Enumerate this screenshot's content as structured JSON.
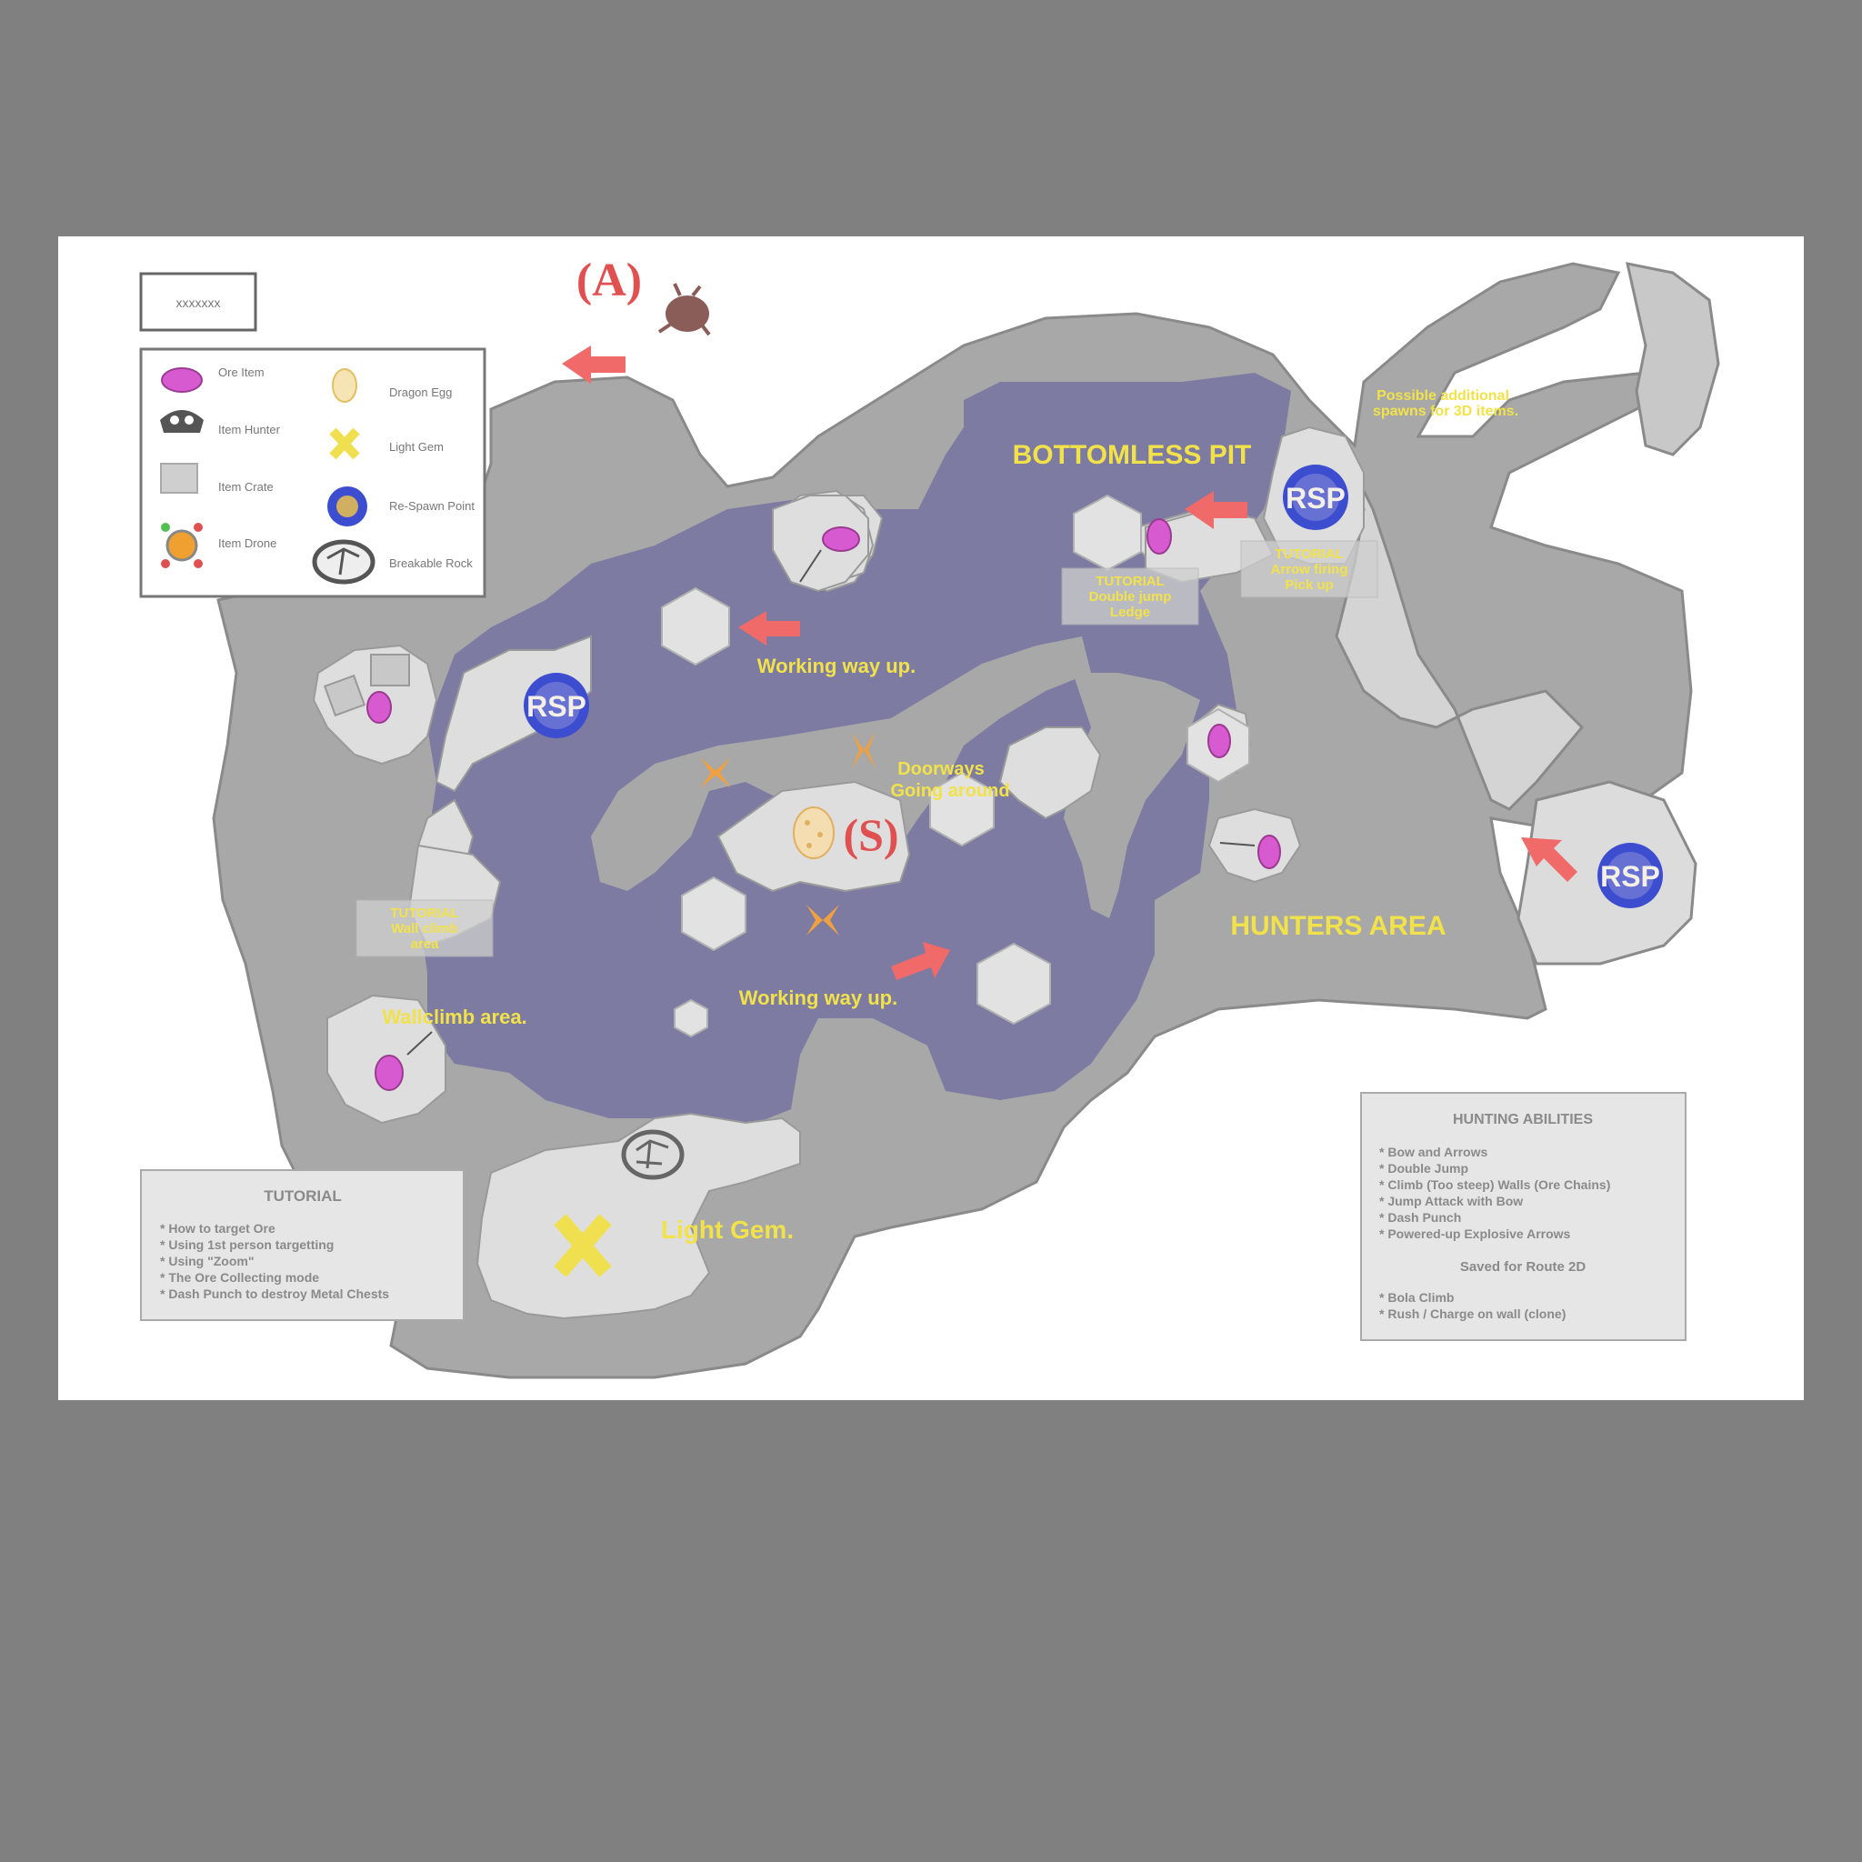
{
  "map": {
    "title_box": "xxxxxxx",
    "markers": {
      "a": "(A)",
      "s": "(S)"
    },
    "labels": {
      "bottomless_pit": "BOTTOMLESS PIT",
      "hunters_area": "HUNTERS  AREA",
      "working_way_up_1": "Working way up.",
      "working_way_up_2": "Working way up.",
      "doorways_1": "Doorways",
      "doorways_2": "Going around",
      "light_gem": "Light Gem.",
      "wallclimb_area": "Wallclimb area.",
      "possible_spawn_1": "Possible additional",
      "possible_spawn_2": "spawns for 3D items.",
      "tutorial_1_line1": "TUTORIAL",
      "tutorial_1_line2": "Double jump",
      "tutorial_1_line3": "Ledge",
      "tutorial_2_line1": "TUTORIAL",
      "tutorial_2_line2": "Arrow firing",
      "tutorial_2_line3": "Pick up",
      "tutorial_3_line1": "TUTORIAL",
      "tutorial_3_line2": "Wall climb",
      "tutorial_3_line3": "area"
    },
    "rsp_labels": [
      "RSP",
      "RSP",
      "RSP"
    ]
  },
  "legend": {
    "items": [
      {
        "icon": "ore-crystal-icon",
        "label": "Ore Item"
      },
      {
        "icon": "egg-icon",
        "label": "Dragon Egg"
      },
      {
        "icon": "mask-icon",
        "label": "Item Hunter"
      },
      {
        "icon": "x-marker-icon",
        "label": "Light Gem"
      },
      {
        "icon": "box-icon",
        "label": "Item Crate"
      },
      {
        "icon": "rsp-portal-icon",
        "label": "Re-Spawn Point"
      },
      {
        "icon": "gear-creature-icon",
        "label": "Item Drone"
      },
      {
        "icon": "cracked-rock-icon",
        "label": "Breakable Rock"
      }
    ]
  },
  "tutorial_panel": {
    "title": "TUTORIAL",
    "lines": [
      "* How to target Ore",
      "* Using 1st person targetting",
      "* Using \"Zoom\"",
      "* The Ore Collecting mode",
      "* Dash Punch to destroy Metal Chests"
    ]
  },
  "hunting_panel": {
    "title": "HUNTING ABILITIES",
    "lines": [
      "* Bow and Arrows",
      "* Double Jump",
      "* Climb (Too steep) Walls (Ore Chains)",
      "* Jump Attack with Bow",
      "* Dash Punch",
      "* Powered-up Explosive Arrows"
    ],
    "subtitle": "Saved for Route 2D",
    "sub_lines": [
      "* Bola Climb",
      "* Rush / Charge on wall (clone)"
    ]
  },
  "colors": {
    "background": "#808080",
    "sheet": "#ffffff",
    "rock_dark": "#a7a7a7",
    "rock_light": "#dedede",
    "pit": "#7c7ba0",
    "label_yellow": "#f2e24a",
    "arrow_red": "#f06a6a",
    "rsp_blue": "#3d4dcf"
  }
}
